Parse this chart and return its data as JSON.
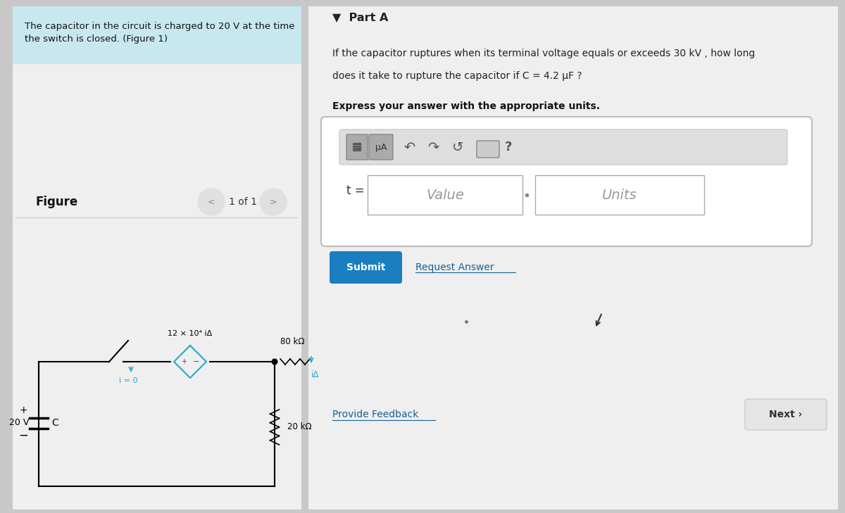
{
  "bg_color": "#c8c8c8",
  "left_panel_bg": "#efefef",
  "right_panel_bg": "#efefef",
  "header_bg": "#c8e8f0",
  "header_text": "The capacitor in the circuit is charged to 20 V at the time\nthe switch is closed. (Figure 1)",
  "part_a_label": "▼  Part A",
  "question_line1": "If the capacitor ruptures when its terminal voltage equals or exceeds 30 kV , how long",
  "question_line2": "does it take to rupture the capacitor if C = 4.2 μF ?",
  "express_text": "Express your answer with the appropriate units.",
  "t_label": "t =",
  "value_placeholder": "Value",
  "units_placeholder": "Units",
  "submit_text": "Submit",
  "request_answer_text": "Request Answer",
  "provide_feedback_text": "Provide Feedback",
  "next_text": "Next ›",
  "figure_text": "Figure",
  "figure_nav": "1 of 1",
  "circuit_source_label": "12 × 10⁴ iΔ",
  "circuit_20v": "20 V",
  "circuit_cap": "C",
  "circuit_20k": "20 kΩ",
  "circuit_80k": "80 kΩ",
  "circuit_i0": "i = 0",
  "circuit_ia": "iΔ",
  "toolbar_mu": "μA"
}
